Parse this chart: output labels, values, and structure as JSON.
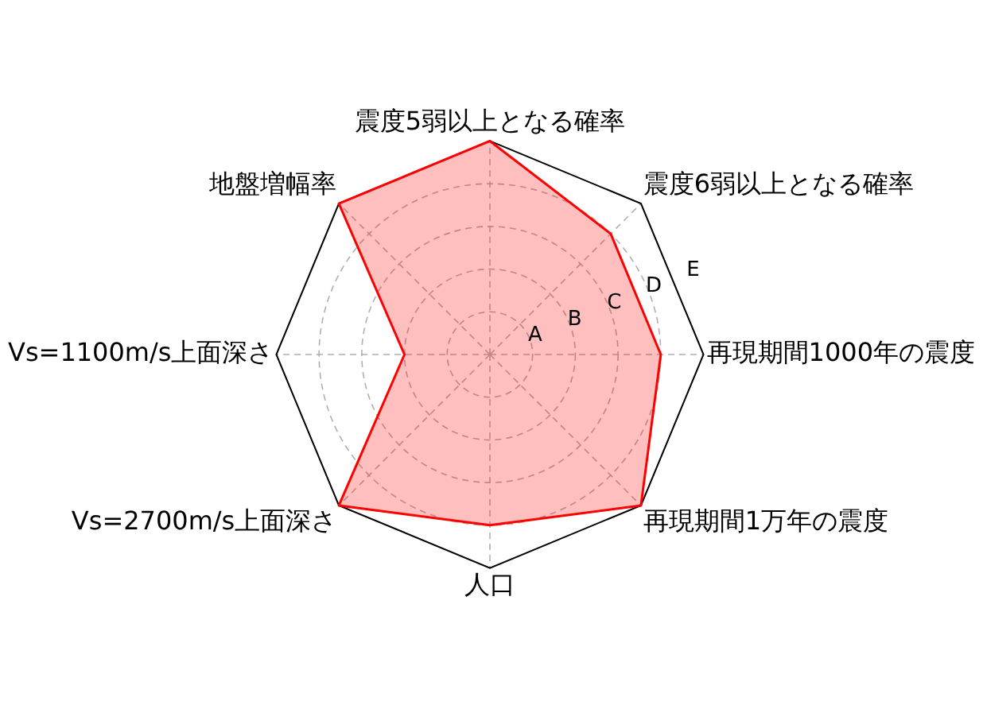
{
  "chart_data": {
    "type": "radar",
    "categories": [
      "震度5弱以上となる確率",
      "震度6弱以上となる確率",
      "再現期間1000年の震度",
      "再現期間1万年の震度",
      "人口",
      "Vs=2700m/s上面深さ",
      "Vs=1100m/s上面深さ",
      "地盤増幅率"
    ],
    "series": [
      {
        "color": "#ff0000",
        "values": [
          5,
          4,
          4,
          5,
          4,
          5,
          2,
          5
        ]
      }
    ],
    "ylim": [
      0,
      5
    ],
    "yticks": [
      {
        "value": 1,
        "label": "A"
      },
      {
        "value": 2,
        "label": "B"
      },
      {
        "value": 3,
        "label": "C"
      },
      {
        "value": 4,
        "label": "D"
      },
      {
        "value": 5,
        "label": "E"
      }
    ],
    "grid": true,
    "legend": false,
    "marker": "none",
    "line_style": "solid"
  }
}
